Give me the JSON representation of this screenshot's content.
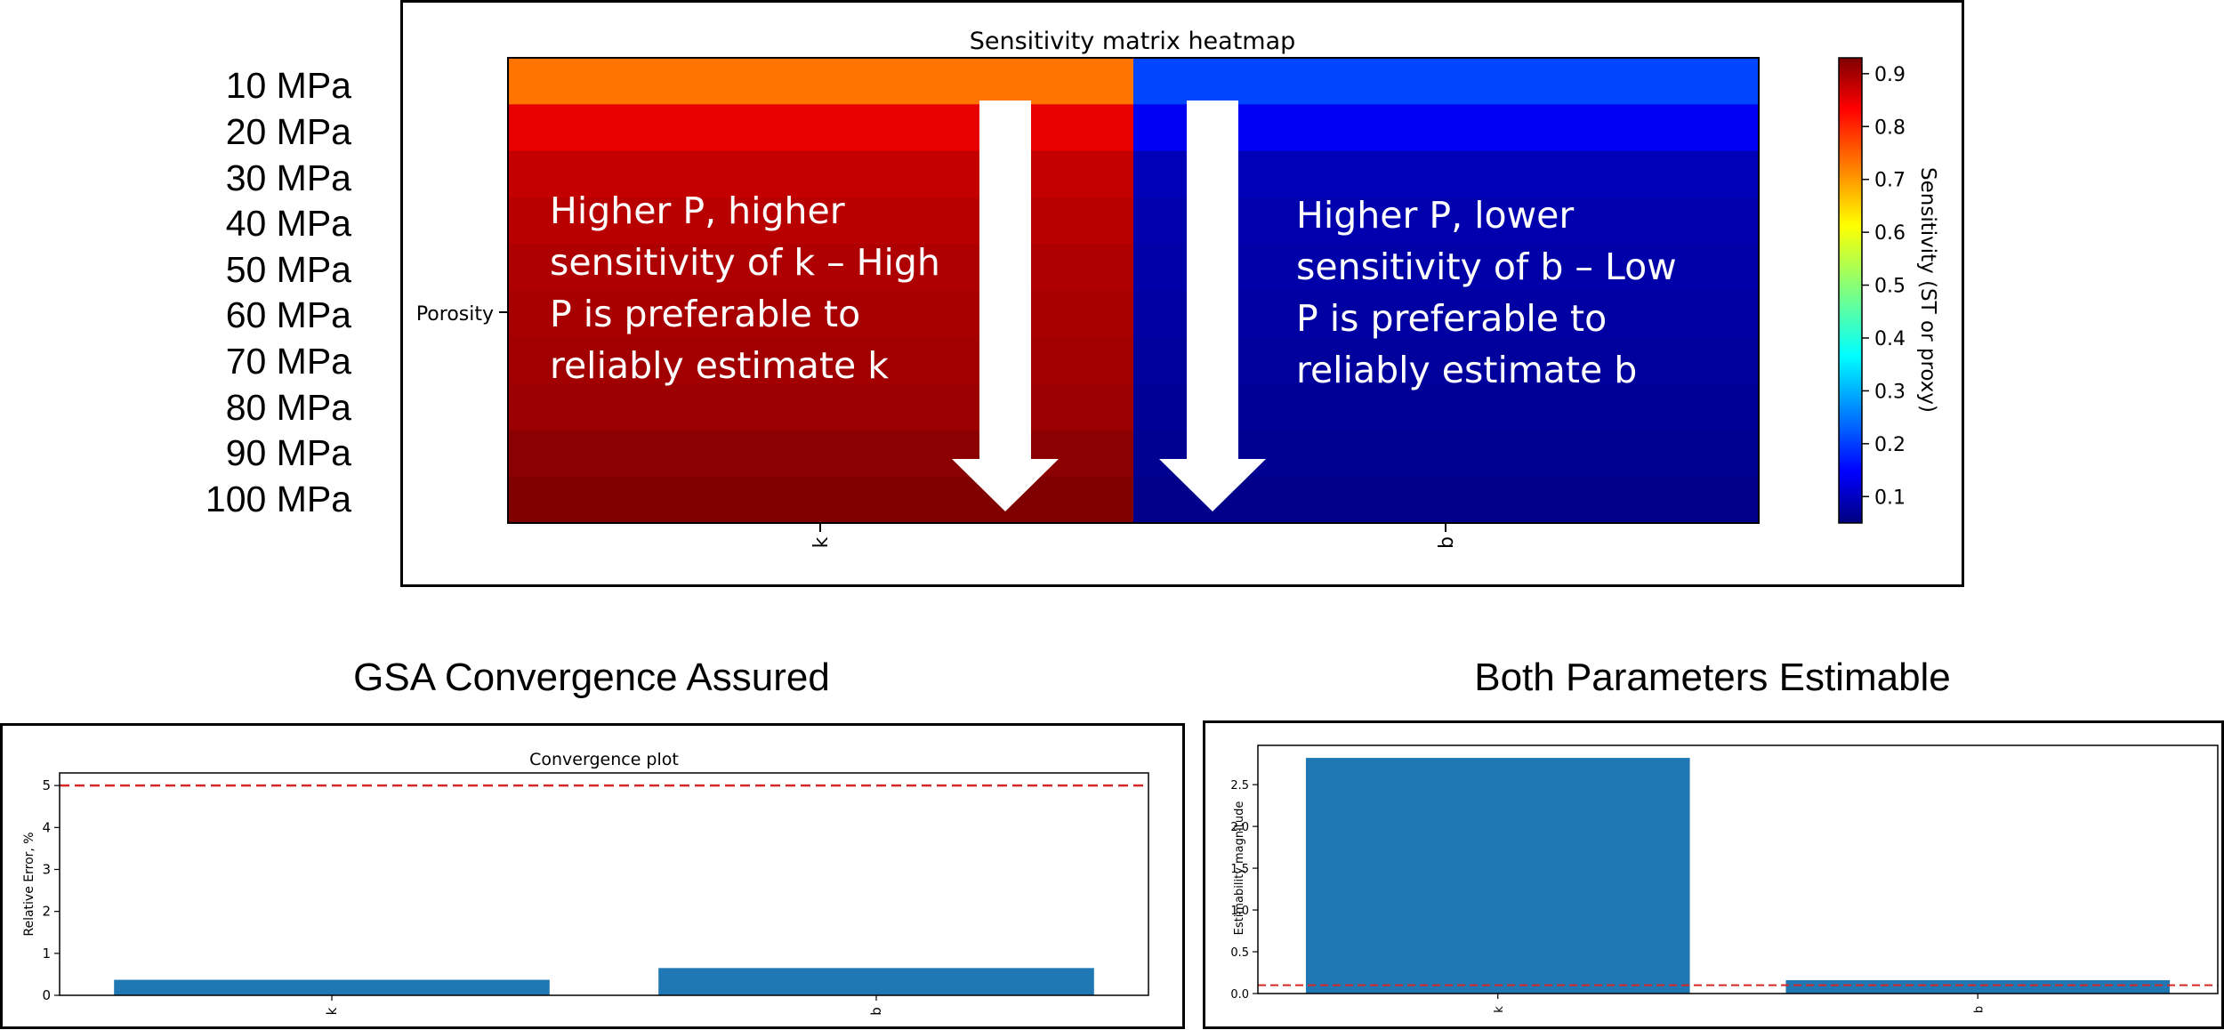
{
  "pressure_labels": [
    "10 MPa",
    "20 MPa",
    "30 MPa",
    "40 MPa",
    "50 MPa",
    "60 MPa",
    "70 MPa",
    "80 MPa",
    "90 MPa",
    "100 MPa"
  ],
  "sections": {
    "convergence_title": "GSA Convergence Assured",
    "estimability_title": "Both Parameters Estimable"
  },
  "annotations": {
    "k_text": [
      "Higher P, higher",
      "sensitivity of k – High",
      "P is preferable to",
      "reliably estimate k"
    ],
    "b_text": [
      "Higher P, lower",
      "sensitivity of b – Low",
      "P is preferable to",
      "reliably estimate b"
    ]
  },
  "colors": {
    "bar": "#1f77b4",
    "threshold": "#d62728",
    "annotation_arrow": "#ffffff"
  },
  "chart_data": [
    {
      "type": "heatmap",
      "title": "Sensitivity matrix heatmap",
      "ylabel_tick": "Porosity",
      "x_categories": [
        "k",
        "b"
      ],
      "rows": [
        "10 MPa",
        "20 MPa",
        "30 MPa",
        "40 MPa",
        "50 MPa",
        "60 MPa",
        "70 MPa",
        "80 MPa",
        "90 MPa",
        "100 MPa"
      ],
      "values": [
        [
          0.72,
          0.22
        ],
        [
          0.84,
          0.15
        ],
        [
          0.87,
          0.1
        ],
        [
          0.88,
          0.09
        ],
        [
          0.89,
          0.085
        ],
        [
          0.895,
          0.08
        ],
        [
          0.9,
          0.075
        ],
        [
          0.905,
          0.07
        ],
        [
          0.92,
          0.065
        ],
        [
          0.93,
          0.06
        ]
      ],
      "colorbar_label": "Sensitivity (ST or proxy)",
      "colorbar_range": [
        0.05,
        0.93
      ],
      "colorbar_ticks": [
        0.1,
        0.2,
        0.3,
        0.4,
        0.5,
        0.6,
        0.7,
        0.8,
        0.9
      ],
      "colormap": "jet"
    },
    {
      "type": "bar",
      "title": "Convergence plot",
      "categories": [
        "k",
        "b"
      ],
      "values": [
        0.37,
        0.65
      ],
      "ylabel": "Relative Error, %",
      "ylim": [
        0,
        5.3
      ],
      "yticks": [
        0,
        1,
        2,
        3,
        4,
        5
      ],
      "threshold": 5
    },
    {
      "type": "bar",
      "title": "",
      "categories": [
        "k",
        "b"
      ],
      "values": [
        2.82,
        0.16
      ],
      "ylabel": "Estimability magnitude",
      "ylim": [
        0,
        2.97
      ],
      "yticks": [
        0.0,
        0.5,
        1.0,
        1.5,
        2.0,
        2.5
      ],
      "threshold": 0.1
    }
  ]
}
